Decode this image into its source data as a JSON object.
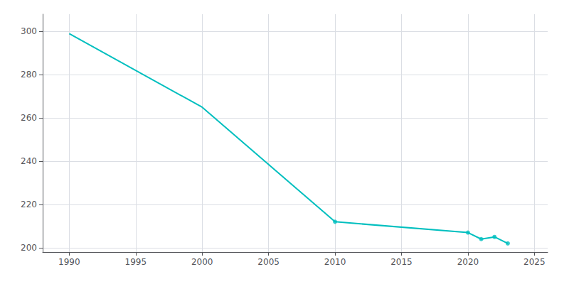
{
  "chart_data": {
    "type": "line",
    "x": [
      1990,
      2000,
      2010,
      2020,
      2021,
      2022,
      2023
    ],
    "series": [
      {
        "type": "line",
        "color": "#00BFBF",
        "marker": "none",
        "values": [
          299,
          265,
          212,
          207,
          204,
          205,
          202
        ]
      },
      {
        "type": "scatter",
        "color": "#00BFBF",
        "marker": "circle",
        "x": [
          2010,
          2020,
          2021,
          2022,
          2023
        ],
        "values": [
          212,
          207,
          204,
          205,
          202
        ]
      }
    ],
    "xlim": [
      1988,
      2026
    ],
    "xticks": [
      1990,
      1995,
      2000,
      2005,
      2010,
      2015,
      2020,
      2025
    ],
    "ylim": [
      198,
      308
    ],
    "yticks": [
      200,
      220,
      240,
      260,
      280,
      300
    ],
    "grid": true
  }
}
